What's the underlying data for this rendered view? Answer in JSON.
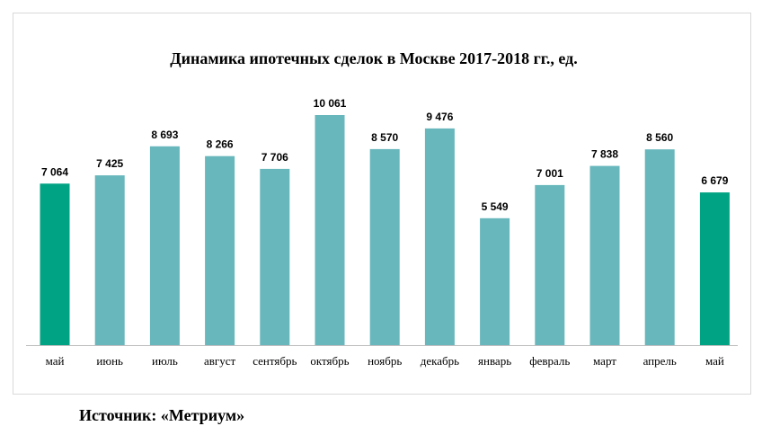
{
  "chart_data": {
    "type": "bar",
    "title": "Динамика ипотечных сделок в Москве 2017-2018 гг., ед.",
    "categories": [
      "май",
      "июнь",
      "июль",
      "август",
      "сентябрь",
      "октябрь",
      "ноябрь",
      "декабрь",
      "январь",
      "февраль",
      "март",
      "апрель",
      "май"
    ],
    "values": [
      7064,
      7425,
      8693,
      8266,
      7706,
      10061,
      8570,
      9476,
      5549,
      7001,
      7838,
      8560,
      6679
    ],
    "value_labels": [
      "7 064",
      "7 425",
      "8 693",
      "8 266",
      "7 706",
      "10 061",
      "8 570",
      "9 476",
      "5 549",
      "7 001",
      "7 838",
      "8 560",
      "6 679"
    ],
    "highlighted": [
      true,
      false,
      false,
      false,
      false,
      false,
      false,
      false,
      false,
      false,
      false,
      false,
      true
    ],
    "colors": {
      "bar": "#67b7bc",
      "highlight": "#00a383",
      "axis": "#bfbfbf",
      "label": "#000000"
    },
    "xlabel": "",
    "ylabel": "",
    "ylim": [
      0,
      10061
    ],
    "grid": false,
    "legend": "none"
  },
  "source": "Источник: «Метриум»"
}
